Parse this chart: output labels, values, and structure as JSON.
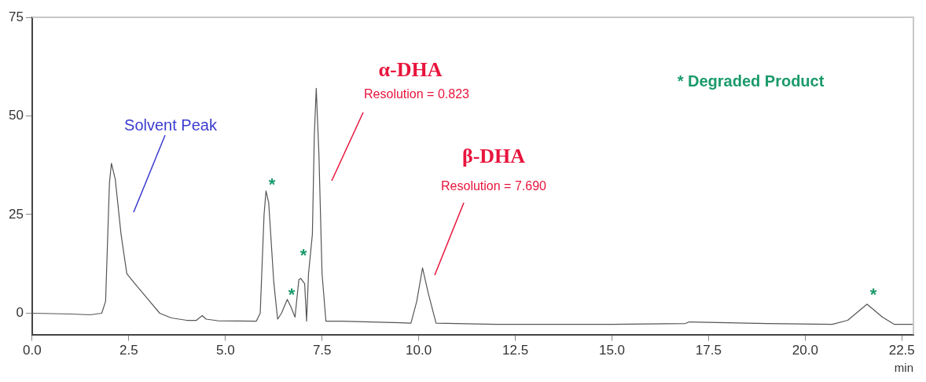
{
  "chart_data": {
    "type": "line",
    "xlabel": "min",
    "x": [
      0,
      1.0,
      1.5,
      1.8,
      1.9,
      2.0,
      2.05,
      2.15,
      2.3,
      2.45,
      2.7,
      3.0,
      3.3,
      3.6,
      4.0,
      4.25,
      4.4,
      4.5,
      4.8,
      5.8,
      5.9,
      6.0,
      6.05,
      6.12,
      6.25,
      6.35,
      6.45,
      6.6,
      6.7,
      6.8,
      6.9,
      6.95,
      7.05,
      7.1,
      7.15,
      7.25,
      7.3,
      7.35,
      7.42,
      7.5,
      7.6,
      8.0,
      9.8,
      9.95,
      10.1,
      10.25,
      10.45,
      12,
      15,
      16.9,
      17,
      19,
      20.7,
      21.1,
      21.6,
      22.0,
      22.3,
      22.8
    ],
    "series": [
      {
        "color": "#555555",
        "values": [
          0,
          -0.2,
          -0.4,
          0,
          3,
          33,
          38,
          34,
          20,
          10,
          7,
          3.5,
          0,
          -1.2,
          -1.8,
          -1.8,
          -0.6,
          -1.5,
          -1.9,
          -2,
          0,
          25,
          31,
          28,
          8,
          -1.5,
          0,
          3.5,
          1.5,
          -1,
          8.5,
          8.8,
          7.5,
          -2,
          10,
          20,
          45,
          57,
          40,
          10,
          -2,
          -2,
          -2.5,
          3,
          11.5,
          5,
          -2.5,
          -2.8,
          -2.8,
          -2.6,
          -2.2,
          -2.6,
          -2.8,
          -1.8,
          2.3,
          -1,
          -2.8,
          -2.8
        ]
      }
    ],
    "xlim": [
      0,
      22.8
    ],
    "xticks": [
      {
        "value": 0,
        "label": "0.0"
      },
      {
        "value": 2.5,
        "label": "2.5"
      },
      {
        "value": 5,
        "label": "5.0"
      },
      {
        "value": 7.5,
        "label": "7.5"
      },
      {
        "value": 10,
        "label": "10.0"
      },
      {
        "value": 12.5,
        "label": "12.5"
      },
      {
        "value": 15,
        "label": "15.0"
      },
      {
        "value": 17.5,
        "label": "17.5"
      },
      {
        "value": 20,
        "label": "20.0"
      },
      {
        "value": 22.5,
        "label": "22.5"
      }
    ],
    "ylim": [
      -5.4,
      75
    ],
    "yticks": [
      0,
      25,
      50,
      75
    ],
    "grid": false,
    "legend": false,
    "marker": "none",
    "line_style": "solid",
    "annotations": [
      "Solvent Peak",
      "α-DHA",
      "Resolution = 0.823",
      "β-DHA",
      "Resolution = 7.690",
      "*",
      "*",
      "*",
      "*",
      "* Degraded Product"
    ]
  }
}
